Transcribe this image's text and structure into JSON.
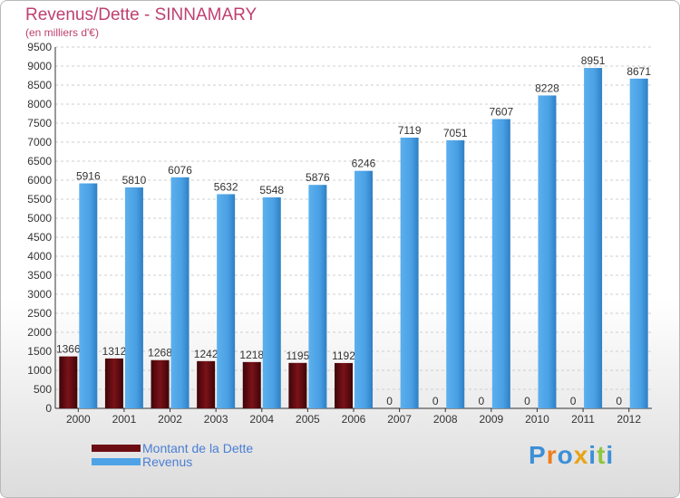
{
  "chart_data": {
    "type": "bar",
    "title": "Revenus/Dette - SINNAMARY",
    "subtitle": "(en milliers d'€)",
    "categories": [
      "2000",
      "2001",
      "2002",
      "2003",
      "2004",
      "2005",
      "2006",
      "2007",
      "2008",
      "2009",
      "2010",
      "2011",
      "2012"
    ],
    "series": [
      {
        "name": "Montant de la Dette",
        "color": "#6b0d13",
        "values": [
          1366,
          1312,
          1268,
          1242,
          1218,
          1195,
          1192,
          0,
          0,
          0,
          0,
          0,
          0
        ]
      },
      {
        "name": "Revenus",
        "color": "#4da3e6",
        "values": [
          5916,
          5810,
          6076,
          5632,
          5548,
          5876,
          6246,
          7119,
          7051,
          7607,
          8228,
          8951,
          8671
        ]
      }
    ],
    "ylim": [
      0,
      9500
    ],
    "yticks": [
      0,
      500,
      1000,
      1500,
      2000,
      2500,
      3000,
      3500,
      4000,
      4500,
      5000,
      5500,
      6000,
      6500,
      7000,
      7500,
      8000,
      8500,
      9000,
      9500
    ],
    "grid": true,
    "legend": "bottom-left"
  },
  "legend": {
    "items": [
      {
        "label": "Montant de la Dette",
        "color": "#6b0d13"
      },
      {
        "label": "Revenus",
        "color": "#4da3e6"
      }
    ]
  },
  "brand": {
    "text": "Proxiti"
  }
}
